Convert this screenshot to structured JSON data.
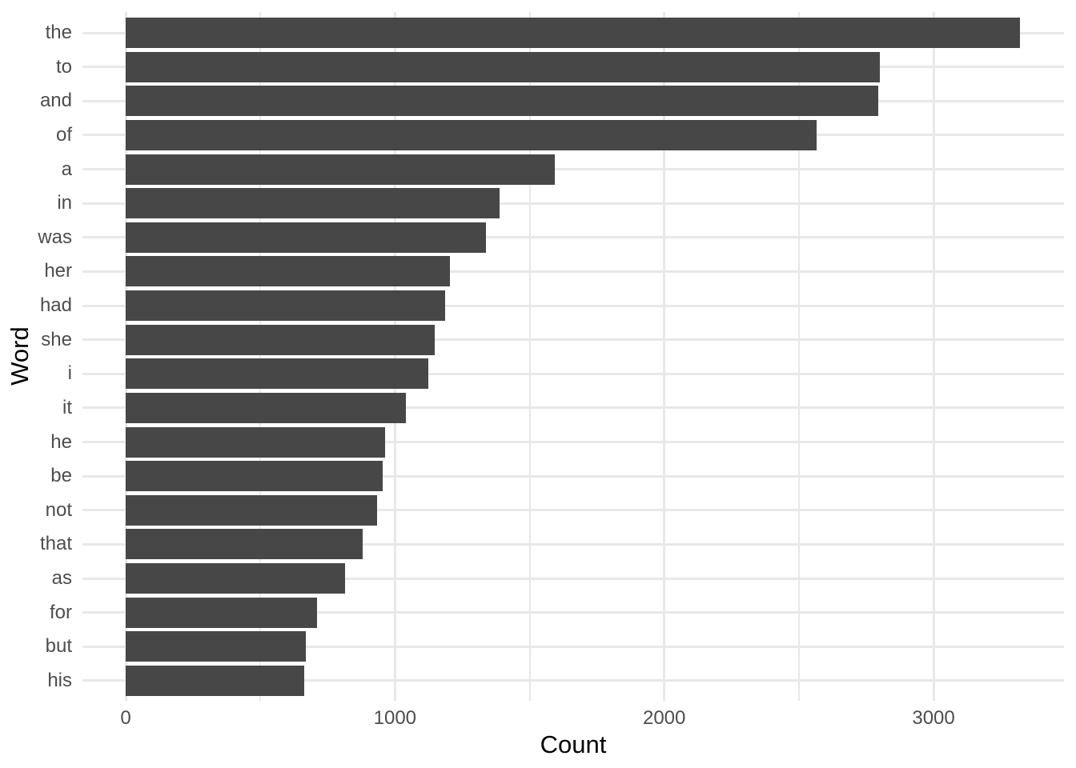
{
  "figure": {
    "background": "#ffffff"
  },
  "chart_data": {
    "type": "bar",
    "orientation": "horizontal",
    "title": "",
    "xlabel": "Count",
    "ylabel": "Word",
    "categories": [
      "the",
      "to",
      "and",
      "of",
      "a",
      "in",
      "was",
      "her",
      "had",
      "she",
      "i",
      "it",
      "he",
      "be",
      "not",
      "that",
      "as",
      "for",
      "but",
      "his"
    ],
    "values": [
      3321,
      2801,
      2795,
      2566,
      1594,
      1389,
      1337,
      1204,
      1186,
      1147,
      1124,
      1041,
      962,
      955,
      934,
      880,
      815,
      710,
      668,
      662
    ],
    "x_ticks": [
      0,
      1000,
      2000,
      3000
    ],
    "x_tick_labels": [
      "0",
      "1000",
      "2000",
      "3000"
    ],
    "x_minor_ticks": [
      500,
      1500,
      2500
    ],
    "xlim": [
      -170,
      3490
    ],
    "grid": {
      "vertical_major": true,
      "vertical_minor": true,
      "horizontal_major": true
    },
    "legend": "none",
    "colors": {
      "bar": "#474747",
      "grid": "#e8e8e8",
      "tick_label": "#4d4d4d",
      "axis_title": "#000000",
      "background": "#ffffff"
    }
  }
}
